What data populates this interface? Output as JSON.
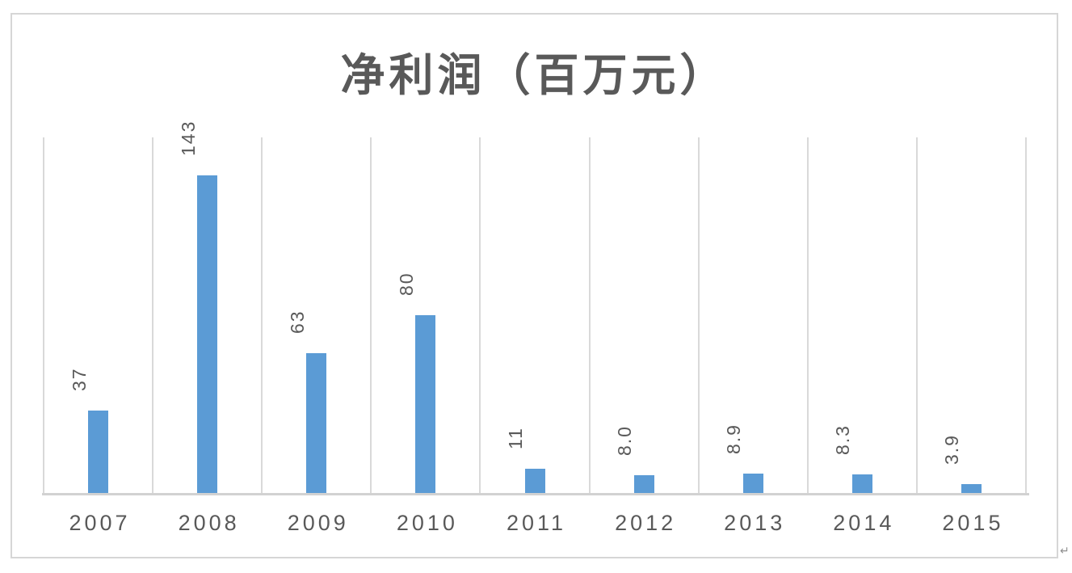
{
  "chart_data": {
    "type": "bar",
    "title": "净利润（百万元）",
    "categories": [
      "2007",
      "2008",
      "2009",
      "2010",
      "2011",
      "2012",
      "2013",
      "2014",
      "2015"
    ],
    "values": [
      37,
      143,
      63,
      80,
      11,
      8.0,
      8.9,
      8.3,
      3.9
    ],
    "value_labels": [
      "37",
      "143",
      "63",
      "80",
      "11",
      "8.0",
      "8.9",
      "8.3",
      "3.9"
    ],
    "xlabel": "",
    "ylabel": "",
    "ylim": [
      0,
      160
    ],
    "grid": "vertical-only",
    "legend": "none",
    "value_label_rotation_deg": -90,
    "colors": {
      "bar": "#5B9BD5",
      "gridline": "#D9D9D9",
      "axis_line": "#D2D2D2",
      "value_label_text": "#595959",
      "tick_label_text": "#595959",
      "title_text": "#595959",
      "frame_border": "#D6D6D6",
      "background": "#FFFFFF"
    }
  },
  "page": {
    "paragraph_mark": "↵"
  }
}
